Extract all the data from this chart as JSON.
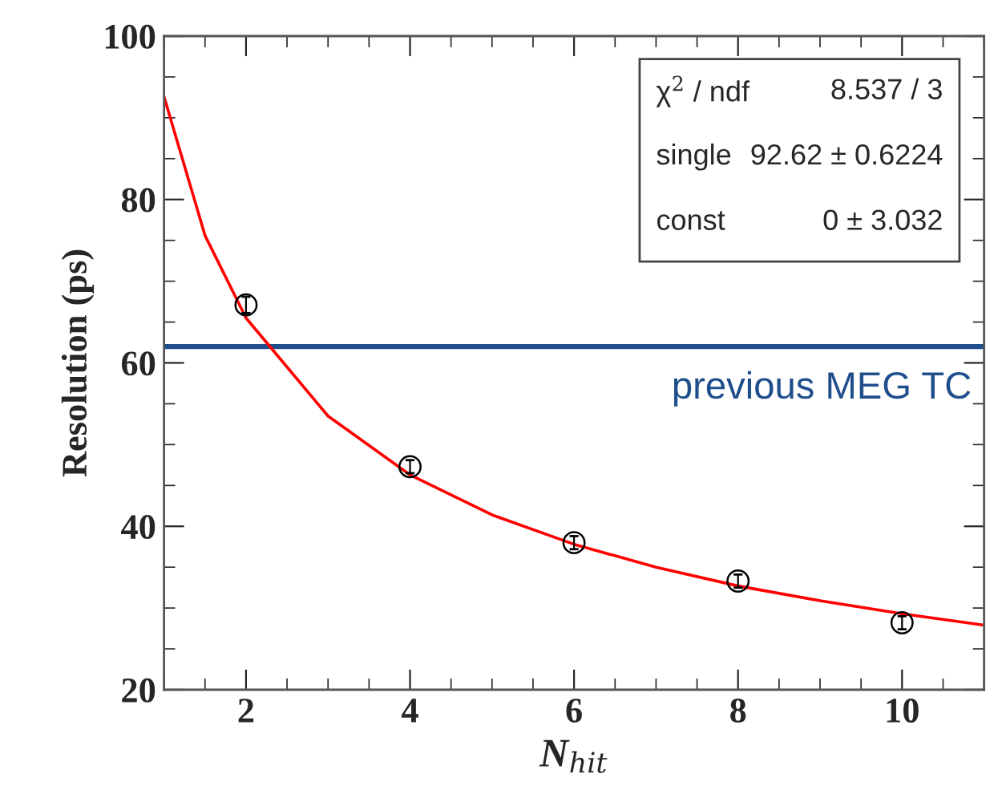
{
  "chart_data": {
    "type": "scatter",
    "xlabel": "N$_{hit}$",
    "ylabel": "Resolution (ps)",
    "xlim": [
      1,
      11
    ],
    "ylim": [
      20,
      100
    ],
    "xticks": [
      2,
      4,
      6,
      8,
      10
    ],
    "yticks": [
      20,
      40,
      60,
      80,
      100
    ],
    "grid": false,
    "legend": false,
    "series": [
      {
        "color": "#000000",
        "marker": "circle",
        "x": [
          2,
          4,
          6,
          8,
          10
        ],
        "values": [
          67.1,
          47.3,
          38.0,
          33.3,
          28.2
        ],
        "errors": [
          1.0,
          0.8,
          0.8,
          0.8,
          0.8
        ]
      },
      {
        "type": "line",
        "color": "#ff0000",
        "marker": "none",
        "line_style": "solid",
        "x": [
          1,
          1.5,
          2,
          3,
          4,
          5,
          6,
          7,
          8,
          9,
          10,
          11
        ],
        "values": [
          92.6,
          75.6,
          65.5,
          53.5,
          46.3,
          41.4,
          37.8,
          35.0,
          32.7,
          30.9,
          29.3,
          27.9
        ]
      }
    ],
    "ref_lines": [
      {
        "axis": "y",
        "value": 62,
        "label": "previous MEG TC",
        "color": "#1f4e8c"
      }
    ],
    "annotations": [
      "χ$^{2}$ / ndf",
      "8.537 / 3",
      "single",
      "92.62 ± 0.6224",
      "const",
      "0 ± 3.032"
    ]
  }
}
